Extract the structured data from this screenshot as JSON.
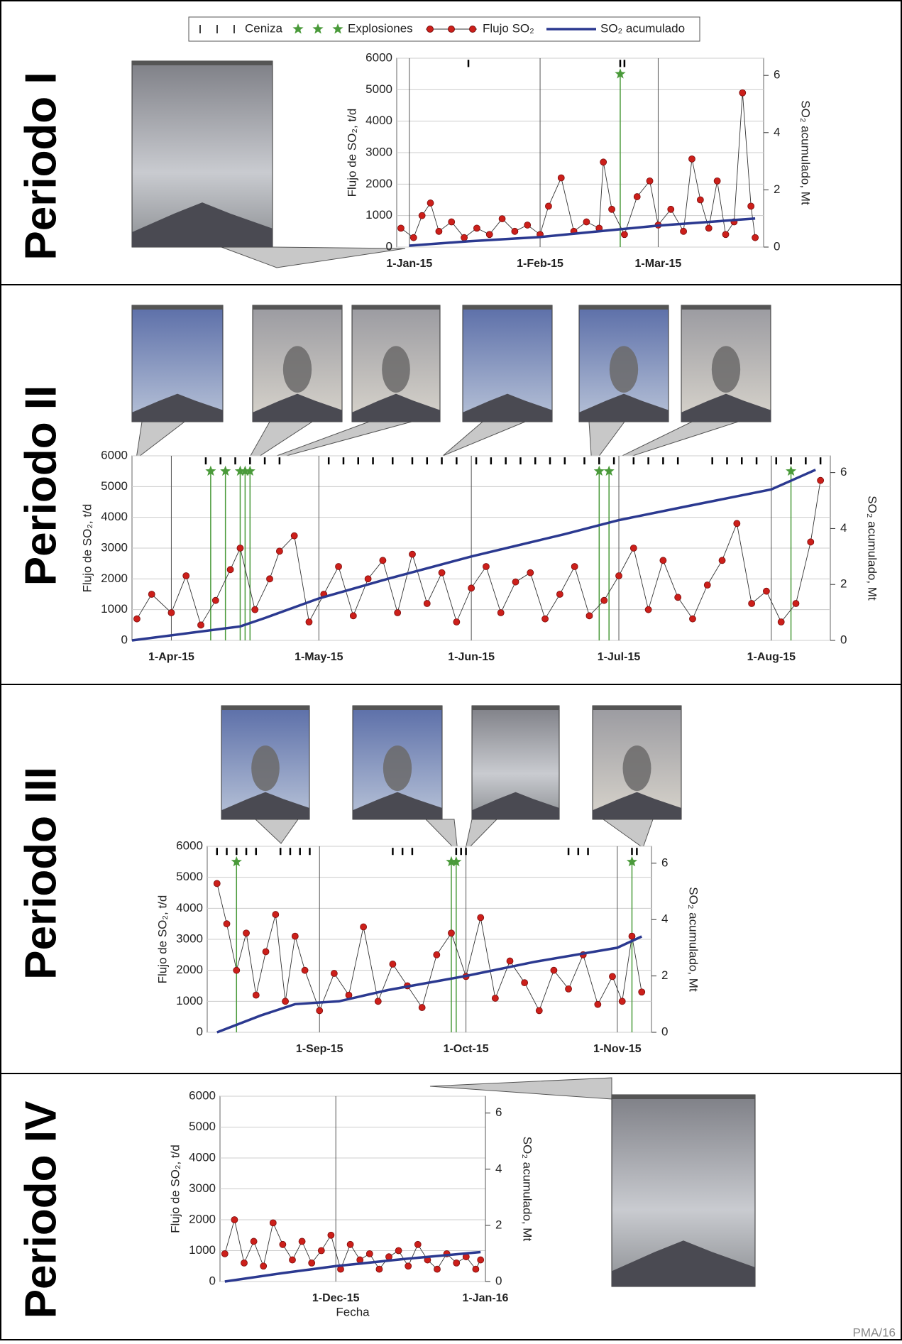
{
  "footer": "PMA/16",
  "chart_data": [
    {
      "type": "line",
      "title": "Periodo I",
      "ylabel": "Flujo de SO₂, t/d",
      "y2label": "SO₂ acumulado, Mt",
      "legend": "top",
      "grid": true,
      "xlim": [
        "2014-12-29",
        "2015-03-26"
      ],
      "xticks": [
        {
          "value": "2015-01-01",
          "label": "1-Jan-15"
        },
        {
          "value": "2015-02-01",
          "label": "1-Feb-15"
        },
        {
          "value": "2015-03-01",
          "label": "1-Mar-15"
        }
      ],
      "ylim": [
        0,
        6000
      ],
      "yticks": [
        0,
        1000,
        2000,
        3000,
        4000,
        5000,
        6000
      ],
      "y2lim": [
        0,
        6.6
      ],
      "y2ticks": [
        0,
        2,
        4,
        6
      ],
      "series": [
        {
          "name": "Ceniza",
          "color": "#000000",
          "marker": "tick",
          "x": [
            "2015-01-15",
            "2015-02-20",
            "2015-02-21"
          ]
        },
        {
          "name": "Explosiones",
          "color": "#4a9a3a",
          "marker": "star",
          "x": [
            "2015-02-20"
          ],
          "values": [
            5500
          ]
        },
        {
          "name": "Flujo SO₂",
          "color": "#cc1f1a",
          "marker": "circle",
          "x": [
            "2014-12-30",
            "2015-01-02",
            "2015-01-04",
            "2015-01-06",
            "2015-01-08",
            "2015-01-11",
            "2015-01-14",
            "2015-01-17",
            "2015-01-20",
            "2015-01-23",
            "2015-01-26",
            "2015-01-29",
            "2015-02-01",
            "2015-02-03",
            "2015-02-06",
            "2015-02-09",
            "2015-02-12",
            "2015-02-15",
            "2015-02-16",
            "2015-02-18",
            "2015-02-21",
            "2015-02-24",
            "2015-02-27",
            "2015-03-01",
            "2015-03-04",
            "2015-03-07",
            "2015-03-09",
            "2015-03-11",
            "2015-03-13",
            "2015-03-15",
            "2015-03-17",
            "2015-03-19",
            "2015-03-21",
            "2015-03-23",
            "2015-03-24"
          ],
          "values": [
            600,
            300,
            1000,
            1400,
            500,
            800,
            300,
            600,
            400,
            900,
            500,
            700,
            400,
            1300,
            2200,
            500,
            800,
            600,
            2700,
            1200,
            400,
            1600,
            2100,
            700,
            1200,
            500,
            2800,
            1500,
            600,
            2100,
            400,
            800,
            4900,
            1300,
            300
          ]
        },
        {
          "name": "SO₂ acumulado",
          "color": "#2b3990",
          "marker": "none",
          "axis": "y2",
          "x": [
            "2015-01-01",
            "2015-01-15",
            "2015-02-01",
            "2015-02-15",
            "2015-03-01",
            "2015-03-15",
            "2015-03-24"
          ],
          "values": [
            0.05,
            0.2,
            0.35,
            0.55,
            0.75,
            0.9,
            1.0
          ]
        }
      ]
    },
    {
      "type": "line",
      "title": "Periodo II",
      "ylabel": "Flujo de SO₂, t/d",
      "y2label": "SO₂ acumulado, Mt",
      "grid": true,
      "xlim": [
        "2015-03-24",
        "2015-08-13"
      ],
      "xticks": [
        {
          "value": "2015-04-01",
          "label": "1-Apr-15"
        },
        {
          "value": "2015-05-01",
          "label": "1-May-15"
        },
        {
          "value": "2015-06-01",
          "label": "1-Jun-15"
        },
        {
          "value": "2015-07-01",
          "label": "1-Jul-15"
        },
        {
          "value": "2015-08-01",
          "label": "1-Aug-15"
        }
      ],
      "ylim": [
        0,
        6000
      ],
      "yticks": [
        0,
        1000,
        2000,
        3000,
        4000,
        5000,
        6000
      ],
      "y2lim": [
        0,
        6.6
      ],
      "y2ticks": [
        0,
        2,
        4,
        6
      ],
      "series": [
        {
          "color": "#000000",
          "marker": "tick",
          "x": [
            "2015-04-08",
            "2015-04-11",
            "2015-04-14",
            "2015-04-17",
            "2015-04-20",
            "2015-04-23",
            "2015-05-03",
            "2015-05-06",
            "2015-05-09",
            "2015-05-12",
            "2015-05-16",
            "2015-05-20",
            "2015-05-23",
            "2015-05-26",
            "2015-05-29",
            "2015-06-02",
            "2015-06-05",
            "2015-06-08",
            "2015-06-11",
            "2015-06-14",
            "2015-06-17",
            "2015-06-20",
            "2015-06-24",
            "2015-06-27",
            "2015-06-30",
            "2015-07-04",
            "2015-07-07",
            "2015-07-10",
            "2015-07-13",
            "2015-07-20",
            "2015-07-23",
            "2015-07-26",
            "2015-07-29",
            "2015-08-02",
            "2015-08-05",
            "2015-08-08",
            "2015-08-11"
          ]
        },
        {
          "color": "#4a9a3a",
          "marker": "star",
          "x": [
            "2015-04-09",
            "2015-04-12",
            "2015-04-15",
            "2015-04-16",
            "2015-04-17",
            "2015-06-27",
            "2015-06-29",
            "2015-08-05"
          ],
          "values": [
            5500,
            5500,
            5500,
            5500,
            5500,
            5500,
            5500,
            5500
          ]
        },
        {
          "color": "#cc1f1a",
          "marker": "circle",
          "x": [
            "2015-03-25",
            "2015-03-28",
            "2015-04-01",
            "2015-04-04",
            "2015-04-07",
            "2015-04-10",
            "2015-04-13",
            "2015-04-15",
            "2015-04-18",
            "2015-04-21",
            "2015-04-23",
            "2015-04-26",
            "2015-04-29",
            "2015-05-02",
            "2015-05-05",
            "2015-05-08",
            "2015-05-11",
            "2015-05-14",
            "2015-05-17",
            "2015-05-20",
            "2015-05-23",
            "2015-05-26",
            "2015-05-29",
            "2015-06-01",
            "2015-06-04",
            "2015-06-07",
            "2015-06-10",
            "2015-06-13",
            "2015-06-16",
            "2015-06-19",
            "2015-06-22",
            "2015-06-25",
            "2015-06-28",
            "2015-07-01",
            "2015-07-04",
            "2015-07-07",
            "2015-07-10",
            "2015-07-13",
            "2015-07-16",
            "2015-07-19",
            "2015-07-22",
            "2015-07-25",
            "2015-07-28",
            "2015-07-31",
            "2015-08-03",
            "2015-08-06",
            "2015-08-09",
            "2015-08-11"
          ],
          "values": [
            700,
            1500,
            900,
            2100,
            500,
            1300,
            2300,
            3000,
            1000,
            2000,
            2900,
            3400,
            600,
            1500,
            2400,
            800,
            2000,
            2600,
            900,
            2800,
            1200,
            2200,
            600,
            1700,
            2400,
            900,
            1900,
            2200,
            700,
            1500,
            2400,
            800,
            1300,
            2100,
            3000,
            1000,
            2600,
            1400,
            700,
            1800,
            2600,
            3800,
            1200,
            1600,
            600,
            1200,
            3200,
            5200
          ]
        },
        {
          "color": "#2b3990",
          "marker": "none",
          "axis": "y2",
          "x": [
            "2015-03-24",
            "2015-04-15",
            "2015-04-20",
            "2015-05-01",
            "2015-05-15",
            "2015-06-01",
            "2015-06-20",
            "2015-07-01",
            "2015-07-15",
            "2015-08-01",
            "2015-08-10"
          ],
          "values": [
            0,
            0.5,
            0.8,
            1.5,
            2.2,
            3.0,
            3.8,
            4.3,
            4.8,
            5.4,
            6.1
          ]
        }
      ]
    },
    {
      "type": "line",
      "title": "Periodo III",
      "ylabel": "Flujo de SO₂, t/d",
      "y2label": "SO₂ acumulado, Mt",
      "grid": true,
      "xlim": [
        "2015-08-09",
        "2015-11-08"
      ],
      "xticks": [
        {
          "value": "2015-09-01",
          "label": "1-Sep-15"
        },
        {
          "value": "2015-10-01",
          "label": "1-Oct-15"
        },
        {
          "value": "2015-11-01",
          "label": "1-Nov-15"
        }
      ],
      "ylim": [
        0,
        6000
      ],
      "yticks": [
        0,
        1000,
        2000,
        3000,
        4000,
        5000,
        6000
      ],
      "y2lim": [
        0,
        6.6
      ],
      "y2ticks": [
        0,
        2,
        4,
        6
      ],
      "series": [
        {
          "color": "#000000",
          "marker": "tick",
          "x": [
            "2015-08-11",
            "2015-08-13",
            "2015-08-15",
            "2015-08-17",
            "2015-08-19",
            "2015-08-24",
            "2015-08-26",
            "2015-08-28",
            "2015-08-30",
            "2015-09-16",
            "2015-09-18",
            "2015-09-20",
            "2015-09-29",
            "2015-09-30",
            "2015-10-01",
            "2015-10-22",
            "2015-10-24",
            "2015-10-26",
            "2015-11-04",
            "2015-11-05"
          ]
        },
        {
          "color": "#4a9a3a",
          "marker": "star",
          "x": [
            "2015-08-15",
            "2015-09-28",
            "2015-09-29",
            "2015-11-04"
          ],
          "values": [
            5500,
            5500,
            5500,
            5500
          ]
        },
        {
          "color": "#cc1f1a",
          "marker": "circle",
          "x": [
            "2015-08-11",
            "2015-08-13",
            "2015-08-15",
            "2015-08-17",
            "2015-08-19",
            "2015-08-21",
            "2015-08-23",
            "2015-08-25",
            "2015-08-27",
            "2015-08-29",
            "2015-09-01",
            "2015-09-04",
            "2015-09-07",
            "2015-09-10",
            "2015-09-13",
            "2015-09-16",
            "2015-09-19",
            "2015-09-22",
            "2015-09-25",
            "2015-09-28",
            "2015-10-01",
            "2015-10-04",
            "2015-10-07",
            "2015-10-10",
            "2015-10-13",
            "2015-10-16",
            "2015-10-19",
            "2015-10-22",
            "2015-10-25",
            "2015-10-28",
            "2015-10-31",
            "2015-11-02",
            "2015-11-04",
            "2015-11-06"
          ],
          "values": [
            4800,
            3500,
            2000,
            3200,
            1200,
            2600,
            3800,
            1000,
            3100,
            2000,
            700,
            1900,
            1200,
            3400,
            1000,
            2200,
            1500,
            800,
            2500,
            3200,
            1800,
            3700,
            1100,
            2300,
            1600,
            700,
            2000,
            1400,
            2500,
            900,
            1800,
            1000,
            3100,
            1300
          ]
        },
        {
          "color": "#2b3990",
          "marker": "none",
          "axis": "y2",
          "x": [
            "2015-08-11",
            "2015-08-20",
            "2015-08-27",
            "2015-09-05",
            "2015-09-15",
            "2015-10-01",
            "2015-10-15",
            "2015-11-01",
            "2015-11-06"
          ],
          "values": [
            0,
            0.6,
            1.0,
            1.1,
            1.5,
            2.0,
            2.5,
            3.0,
            3.4
          ]
        }
      ]
    },
    {
      "type": "line",
      "title": "Periodo IV",
      "ylabel": "Flujo de SO₂, t/d",
      "y2label": "SO₂ acumulado, Mt",
      "xlabel": "Fecha",
      "grid": true,
      "xlim": [
        "2015-11-07",
        "2016-01-01"
      ],
      "xticks": [
        {
          "value": "2015-12-01",
          "label": "1-Dec-15"
        },
        {
          "value": "2016-01-01",
          "label": "1-Jan-16"
        }
      ],
      "ylim": [
        0,
        6000
      ],
      "yticks": [
        0,
        1000,
        2000,
        3000,
        4000,
        5000,
        6000
      ],
      "y2lim": [
        0,
        6.6
      ],
      "y2ticks": [
        0,
        2,
        4,
        6
      ],
      "series": [
        {
          "color": "#cc1f1a",
          "marker": "circle",
          "x": [
            "2015-11-08",
            "2015-11-10",
            "2015-11-12",
            "2015-11-14",
            "2015-11-16",
            "2015-11-18",
            "2015-11-20",
            "2015-11-22",
            "2015-11-24",
            "2015-11-26",
            "2015-11-28",
            "2015-11-30",
            "2015-12-02",
            "2015-12-04",
            "2015-12-06",
            "2015-12-08",
            "2015-12-10",
            "2015-12-12",
            "2015-12-14",
            "2015-12-16",
            "2015-12-18",
            "2015-12-20",
            "2015-12-22",
            "2015-12-24",
            "2015-12-26",
            "2015-12-28",
            "2015-12-30",
            "2015-12-31"
          ],
          "values": [
            900,
            2000,
            600,
            1300,
            500,
            1900,
            1200,
            700,
            1300,
            600,
            1000,
            1500,
            400,
            1200,
            700,
            900,
            400,
            800,
            1000,
            500,
            1200,
            700,
            400,
            900,
            600,
            800,
            400,
            700
          ]
        },
        {
          "color": "#2b3990",
          "marker": "none",
          "axis": "y2",
          "x": [
            "2015-11-08",
            "2015-11-20",
            "2015-12-01",
            "2015-12-15",
            "2015-12-31"
          ],
          "values": [
            0,
            0.3,
            0.55,
            0.8,
            1.05
          ]
        }
      ]
    }
  ]
}
